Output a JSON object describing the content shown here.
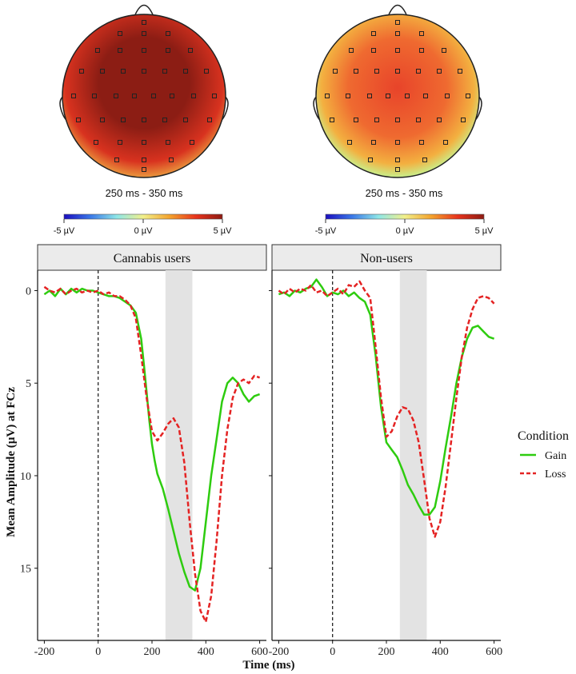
{
  "chart_data": [
    {
      "type": "heatmap",
      "subtype": "scalp-topography",
      "condition": "Cannabis users",
      "time_window": "250 ms - 350 ms",
      "colorbar": {
        "min_label": "-5 µV",
        "mid_label": "0 µV",
        "max_label": "5 µV",
        "colors": [
          "#1a0dbf",
          "#3a78e8",
          "#8ee7e8",
          "#f2f08a",
          "#f4a32c",
          "#e8331c",
          "#8e1a12"
        ]
      },
      "field": {
        "center_color": "#8c1d14",
        "mid_color": "#d8321f",
        "edge_color": "#f2c24a"
      }
    },
    {
      "type": "heatmap",
      "subtype": "scalp-topography",
      "condition": "Non-users",
      "time_window": "250 ms - 350 ms",
      "colorbar": {
        "min_label": "-5 µV",
        "mid_label": "0 µV",
        "max_label": "5 µV",
        "colors": [
          "#1a0dbf",
          "#3a78e8",
          "#8ee7e8",
          "#f2f08a",
          "#f4a32c",
          "#e8331c",
          "#8e1a12"
        ]
      },
      "field": {
        "center_color": "#e8442a",
        "mid_color": "#ef6a30",
        "edge_color": "#c8f08c"
      }
    },
    {
      "type": "line",
      "xlabel": "Time (ms)",
      "ylabel": "Mean Amplitude (µV) at FCz",
      "x_ticks": [
        -200,
        0,
        200,
        400,
        600
      ],
      "y_ticks": [
        0,
        5,
        10,
        15
      ],
      "xlim": [
        -225,
        625
      ],
      "ylim": [
        -1.1,
        18.9
      ],
      "y_reversed": true,
      "shaded_window": [
        250,
        350
      ],
      "legend": {
        "title": "Condition",
        "position": "right",
        "entries": [
          {
            "name": "Gain",
            "color": "#2ecc0f",
            "dash": "solid"
          },
          {
            "name": "Loss",
            "color": "#e42323",
            "dash": "dashed"
          }
        ]
      },
      "panels": [
        {
          "label": "Cannabis users",
          "series": [
            {
              "name": "Gain",
              "x": [
                -200,
                -180,
                -160,
                -140,
                -120,
                -100,
                -80,
                -60,
                -40,
                -20,
                0,
                20,
                40,
                60,
                80,
                100,
                120,
                140,
                160,
                170,
                180,
                190,
                200,
                210,
                220,
                240,
                260,
                280,
                300,
                320,
                340,
                360,
                380,
                400,
                420,
                440,
                460,
                480,
                500,
                520,
                540,
                560,
                580,
                600
              ],
              "y": [
                0.2,
                0.0,
                0.3,
                -0.1,
                0.2,
                -0.1,
                0.1,
                -0.1,
                0.0,
                0.0,
                0.1,
                0.2,
                0.3,
                0.3,
                0.4,
                0.6,
                0.8,
                1.2,
                2.6,
                4.0,
                5.5,
                7.0,
                8.3,
                9.2,
                9.9,
                10.7,
                11.8,
                13.0,
                14.2,
                15.2,
                16.0,
                16.2,
                15.0,
                12.5,
                10.0,
                8.0,
                6.0,
                5.0,
                4.7,
                5.0,
                5.6,
                6.0,
                5.7,
                5.6
              ]
            },
            {
              "name": "Loss",
              "x": [
                -200,
                -180,
                -160,
                -140,
                -120,
                -100,
                -80,
                -60,
                -40,
                -20,
                0,
                20,
                40,
                60,
                80,
                100,
                120,
                140,
                160,
                180,
                200,
                220,
                240,
                260,
                280,
                300,
                320,
                340,
                360,
                380,
                400,
                420,
                440,
                460,
                480,
                500,
                520,
                540,
                560,
                580,
                600
              ],
              "y": [
                -0.2,
                0.0,
                0.1,
                -0.1,
                0.2,
                0.0,
                -0.1,
                0.1,
                0.0,
                0.1,
                0.0,
                0.2,
                0.1,
                0.3,
                0.3,
                0.5,
                0.8,
                1.5,
                3.5,
                5.8,
                7.6,
                8.1,
                7.7,
                7.2,
                6.9,
                7.4,
                9.3,
                12.5,
                15.3,
                17.3,
                17.9,
                16.5,
                13.5,
                10.0,
                7.5,
                5.8,
                5.0,
                4.8,
                5.0,
                4.6,
                4.7
              ]
            }
          ]
        },
        {
          "label": "Non-users",
          "series": [
            {
              "name": "Gain",
              "x": [
                -200,
                -180,
                -160,
                -140,
                -120,
                -100,
                -80,
                -60,
                -40,
                -20,
                0,
                20,
                40,
                60,
                80,
                100,
                120,
                140,
                160,
                180,
                200,
                220,
                240,
                260,
                280,
                300,
                320,
                340,
                360,
                380,
                400,
                420,
                440,
                460,
                480,
                500,
                520,
                540,
                560,
                580,
                600
              ],
              "y": [
                0.2,
                0.1,
                0.3,
                0.0,
                0.1,
                -0.1,
                -0.2,
                -0.6,
                -0.2,
                0.3,
                0.1,
                0.2,
                0.0,
                0.3,
                0.1,
                0.4,
                0.6,
                1.3,
                3.5,
                6.3,
                8.2,
                8.6,
                9.0,
                9.7,
                10.5,
                11.0,
                11.6,
                12.1,
                12.1,
                11.7,
                10.3,
                8.5,
                6.8,
                5.0,
                3.6,
                2.6,
                2.0,
                1.9,
                2.2,
                2.5,
                2.6
              ]
            },
            {
              "name": "Loss",
              "x": [
                -200,
                -180,
                -160,
                -140,
                -120,
                -100,
                -80,
                -60,
                -40,
                -20,
                0,
                20,
                40,
                60,
                80,
                100,
                120,
                140,
                160,
                180,
                200,
                220,
                240,
                260,
                280,
                300,
                320,
                340,
                360,
                380,
                400,
                420,
                440,
                460,
                480,
                500,
                520,
                540,
                560,
                580,
                600
              ],
              "y": [
                0.0,
                0.2,
                -0.1,
                0.1,
                -0.1,
                0.0,
                -0.3,
                0.1,
                0.0,
                0.3,
                0.1,
                -0.1,
                0.2,
                -0.3,
                -0.2,
                -0.5,
                0.0,
                0.4,
                3.0,
                5.8,
                7.9,
                7.6,
                6.8,
                6.3,
                6.4,
                7.0,
                8.2,
                10.2,
                12.3,
                13.3,
                12.5,
                10.6,
                8.2,
                5.8,
                3.6,
                2.0,
                1.0,
                0.4,
                0.3,
                0.4,
                0.7
              ]
            }
          ]
        }
      ]
    }
  ]
}
